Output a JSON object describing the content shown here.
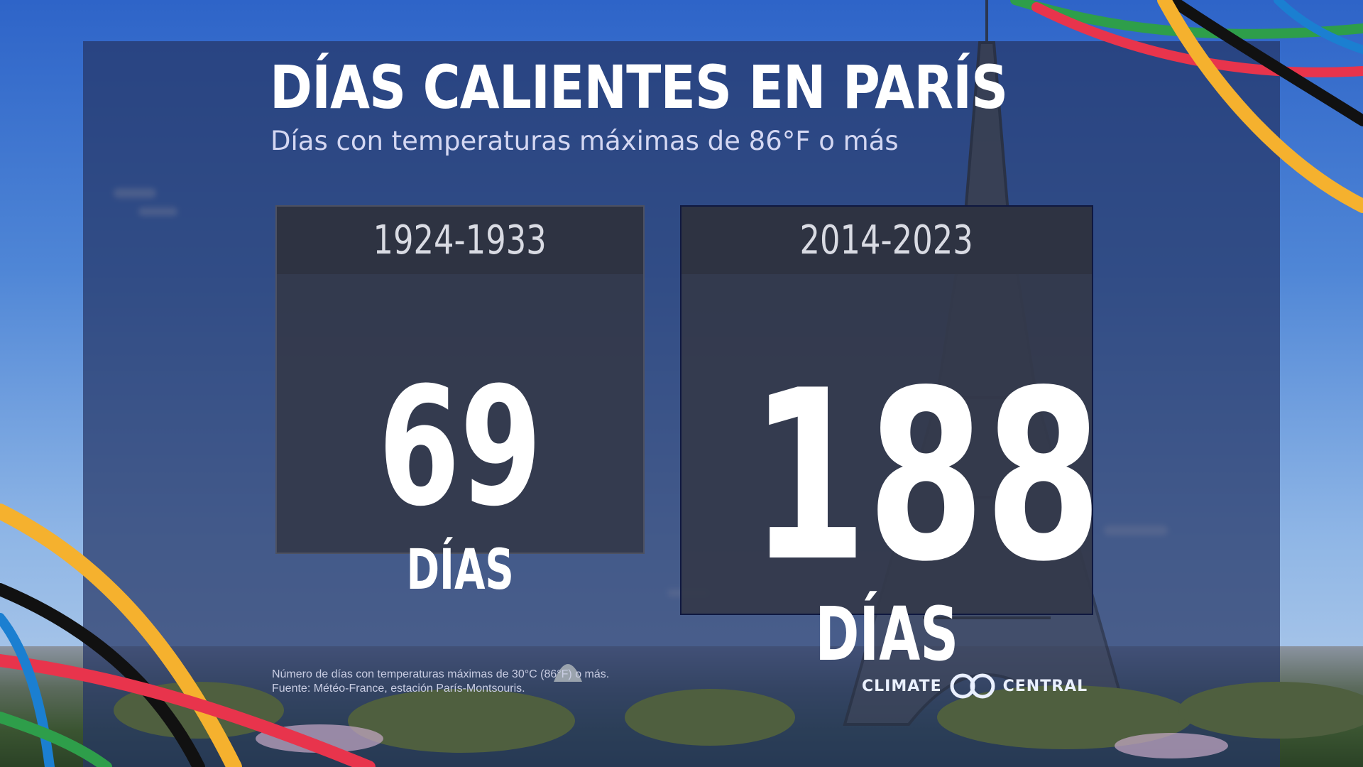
{
  "header": {
    "title": "DÍAS CALIENTES EN PARÍS",
    "subtitle": "Días con temperaturas máximas de 86°F o más"
  },
  "chart_data": {
    "type": "table",
    "title": "DÍAS CALIENTES EN PARÍS",
    "subtitle": "Días con temperaturas máximas de 86°F o más",
    "categories": [
      "1924-1933",
      "2014-2023"
    ],
    "values": [
      69,
      188
    ],
    "unit": "DÍAS"
  },
  "cards": [
    {
      "period": "1924-1933",
      "value": "69",
      "unit": "DÍAS"
    },
    {
      "period": "2014-2023",
      "value": "188",
      "unit": "DÍAS"
    }
  ],
  "footnote": {
    "line1": "Número de días con temperaturas máximas de 30°C (86°F) o más.",
    "line2": "Fuente: Météo-France, estación París-Montsouris."
  },
  "logo": {
    "left": "CLIMATE",
    "right": "CENTRAL"
  },
  "colors": {
    "overlay": "#263666",
    "card_header": "#2e3342",
    "card_body": "#34394a",
    "ribbon_yellow": "#f5b12e",
    "ribbon_red": "#e8344c",
    "ribbon_green": "#2e9e4a",
    "ribbon_blue": "#1b7fd1",
    "ribbon_black": "#111111"
  }
}
